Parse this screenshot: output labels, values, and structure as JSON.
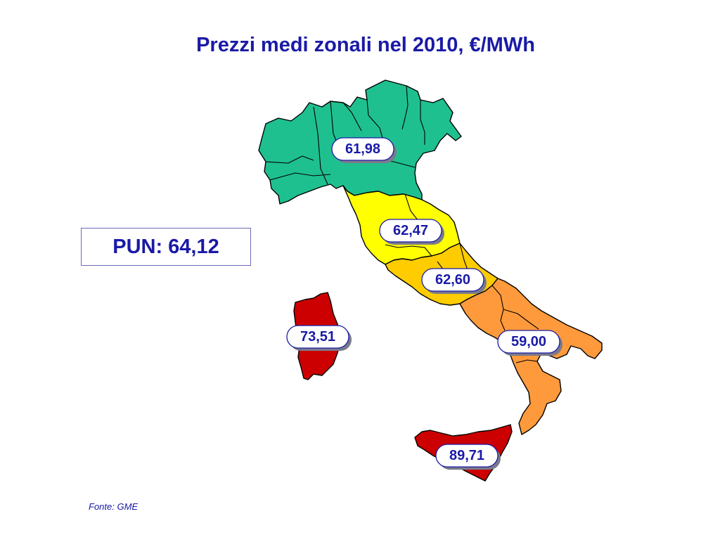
{
  "title": "Prezzi medi zonali nel 2010, €/MWh",
  "pun": {
    "label": "PUN: 64,12",
    "value": 64.12
  },
  "source": "Fonte: GME",
  "colors": {
    "nord": "#1fc08f",
    "centro_nord": "#ffff00",
    "centro_sud": "#ffcc00",
    "sud": "#ff9a3c",
    "sardegna": "#cc0000",
    "sicilia": "#cc0000",
    "text": "#1a1aa6"
  },
  "zones": [
    {
      "id": "nord",
      "price": "61,98",
      "value": 61.98
    },
    {
      "id": "centro_nord",
      "price": "62,47",
      "value": 62.47
    },
    {
      "id": "centro_sud",
      "price": "62,60",
      "value": 62.6
    },
    {
      "id": "sud",
      "price": "59,00",
      "value": 59.0
    },
    {
      "id": "sardegna",
      "price": "73,51",
      "value": 73.51
    },
    {
      "id": "sicilia",
      "price": "89,71",
      "value": 89.71
    }
  ]
}
